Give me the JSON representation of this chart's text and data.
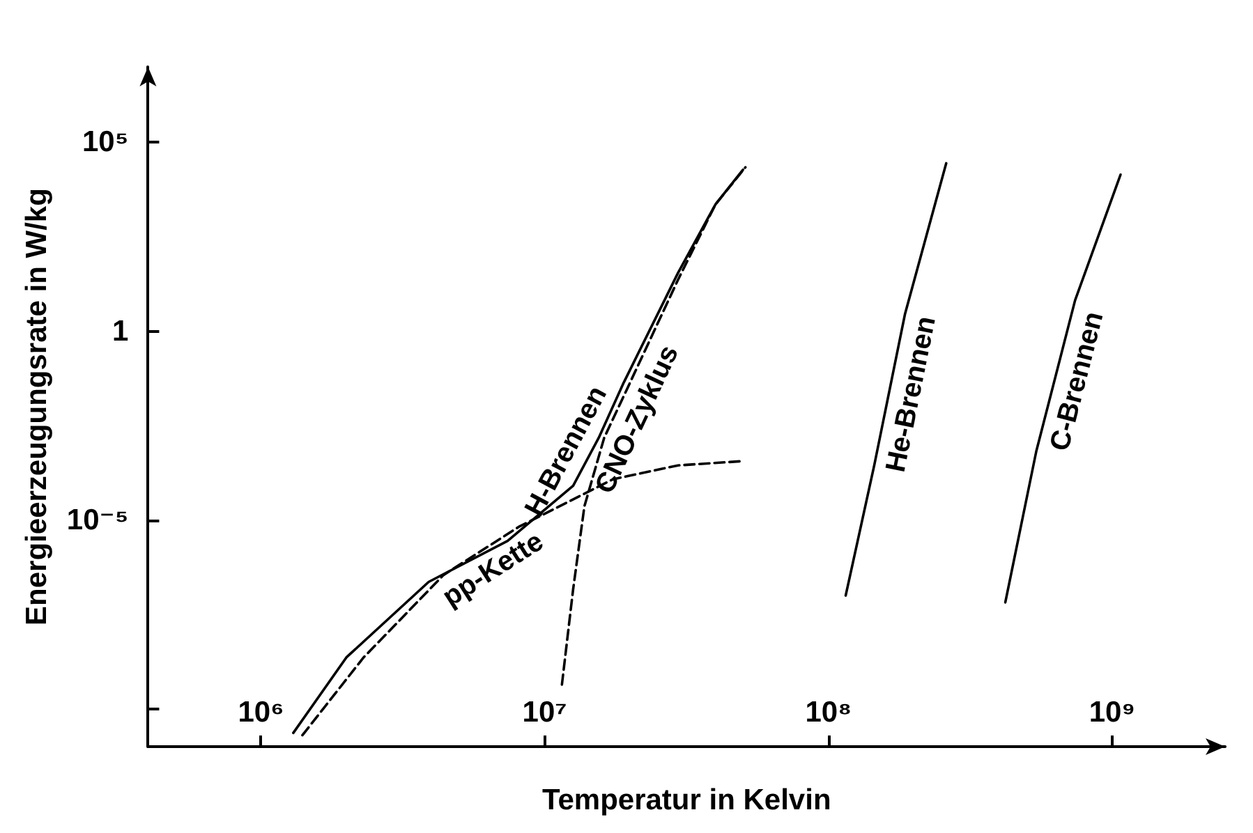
{
  "chart_data": {
    "type": "line",
    "xlabel": "Temperatur in Kelvin",
    "ylabel": "Energieerzeugungsrate in W/kg",
    "log": "xy",
    "grid": false,
    "legend": false,
    "marker": "none",
    "xlim": [
      400000,
      2500000000
    ],
    "ylim": [
      1e-11,
      10000000.0
    ],
    "xticks": [
      {
        "value": 1000000,
        "label": "10⁶"
      },
      {
        "value": 10000000,
        "label": "10⁷"
      },
      {
        "value": 100000000,
        "label": "10⁸"
      },
      {
        "value": 1000000000,
        "label": "10⁹"
      }
    ],
    "yticks": [
      {
        "value": 1e-10,
        "label": null
      },
      {
        "value": 1e-05,
        "label": "10⁻⁵"
      },
      1,
      {
        "value": 100000,
        "label": "10⁵"
      }
    ],
    "series": [
      {
        "name": "H-Brennen",
        "color": "#000000",
        "line_style": "solid",
        "x": [
          1300000,
          2000000,
          3900000,
          7400000,
          12600000,
          15500000,
          19000000,
          29500000,
          40000000,
          50000000
        ],
        "values": [
          2.3e-11,
          2.3e-09,
          2.3e-07,
          2.8e-06,
          8.1e-05,
          0.0015,
          0.044,
          35,
          2300,
          19000
        ]
      },
      {
        "name": "pp-Kette",
        "color": "#000000",
        "line_style": "dashed",
        "x": [
          1400000,
          2300000,
          4400000,
          8100000,
          17400000,
          29500000,
          49000000
        ],
        "values": [
          2e-11,
          2.3e-09,
          3.5e-07,
          6.6e-06,
          0.00012,
          0.00028,
          0.00036
        ]
      },
      {
        "name": "CNO-Zyklus",
        "color": "#000000",
        "line_style": "dashed",
        "x": [
          11500000,
          12600000,
          13800000,
          16200000,
          20000000,
          29500000,
          40000000,
          51000000
        ],
        "values": [
          4.4e-10,
          1.5e-07,
          2.3e-05,
          0.0015,
          0.044,
          23,
          2300,
          22000
        ]
      },
      {
        "name": "He-Brennen",
        "color": "#000000",
        "line_style": "solid",
        "x": [
          115000000,
          145000000,
          186000000,
          260000000
        ],
        "values": [
          1e-07,
          0.00028,
          2.8,
          28000
        ]
      },
      {
        "name": "C-Brennen",
        "color": "#000000",
        "line_style": "solid",
        "x": [
          420000000,
          540000000,
          740000000,
          1070000000
        ],
        "values": [
          6.6e-08,
          0.00066,
          6.6,
          14000
        ]
      }
    ]
  }
}
